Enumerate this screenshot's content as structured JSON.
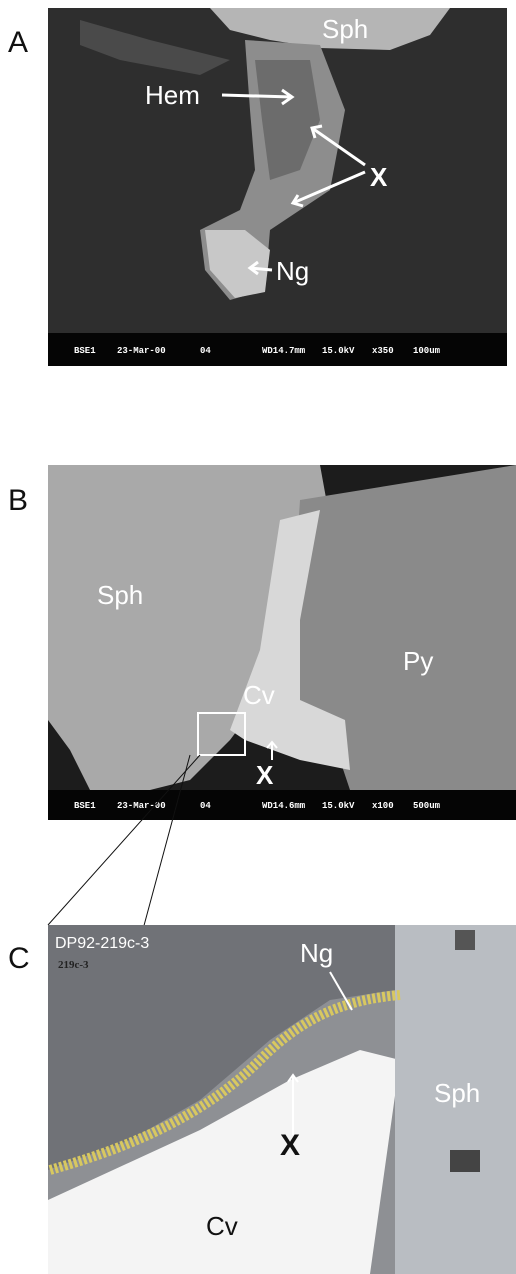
{
  "panels": [
    {
      "letter": "A",
      "labels": [
        "Sph",
        "Hem",
        "X",
        "Ng"
      ],
      "info_bar": [
        "BSE1",
        "23-Mar-00",
        "04",
        "WD14.7mm",
        "15.0kV",
        "x350",
        "100um"
      ]
    },
    {
      "letter": "B",
      "labels": [
        "Sph",
        "Py",
        "Cv",
        "X"
      ],
      "info_bar": [
        "BSE1",
        "23-Mar-00",
        "04",
        "WD14.6mm",
        "15.0kV",
        "x100",
        "500um"
      ]
    },
    {
      "letter": "C",
      "labels": [
        "DP92-219c-3",
        "219c-3",
        "Ng",
        "Sph",
        "X",
        "Cv"
      ]
    }
  ]
}
